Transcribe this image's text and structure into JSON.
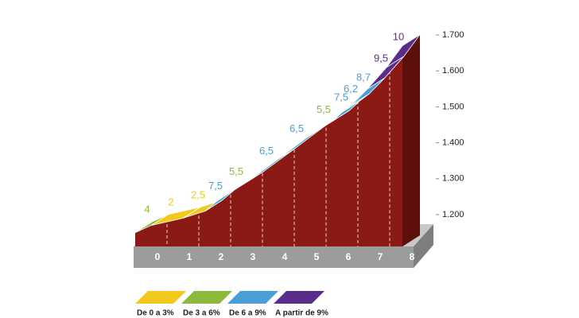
{
  "chart_data": {
    "type": "climb-profile",
    "distance": [
      0,
      0.5,
      1.5,
      2.2,
      2.6,
      3.5,
      4.5,
      5.4,
      6.2,
      6.5,
      6.8,
      7.3,
      7.9,
      8.4
    ],
    "altitude": [
      1150,
      1170,
      1190,
      1210,
      1240,
      1290,
      1355,
      1415,
      1460,
      1485,
      1505,
      1550,
      1610,
      1670
    ],
    "gradients": [
      4,
      2,
      2.5,
      7.5,
      5.5,
      6.5,
      6.5,
      5.5,
      7.5,
      6.2,
      8.7,
      9.5,
      10
    ],
    "gradient_labels": [
      "4",
      "2",
      "2,5",
      "7,5",
      "5,5",
      "6,5",
      "6,5",
      "5,5",
      "7,5",
      "6,2",
      "8,7",
      "9,5",
      "10"
    ],
    "colors": [
      "#8dba3c",
      "#f2c81c",
      "#f2c81c",
      "#4a9fd8",
      "#8dba3c",
      "#4a9fd8",
      "#4a9fd8",
      "#8dba3c",
      "#4a9fd8",
      "#4a9fd8",
      "#4a9fd8",
      "#5a2d8c",
      "#5a2d8c"
    ],
    "profile_color": "#8b1a14",
    "ylim": [
      1200,
      1700
    ],
    "yticks": [
      {
        "value": 1200,
        "label": "1.200"
      },
      {
        "value": 1300,
        "label": "1.300"
      },
      {
        "value": 1400,
        "label": "1.400"
      },
      {
        "value": 1500,
        "label": "1.500"
      },
      {
        "value": 1600,
        "label": "1.600"
      },
      {
        "value": 1700,
        "label": "1.700"
      }
    ],
    "xticks": [
      0,
      1,
      2,
      3,
      4,
      5,
      6,
      7,
      8
    ],
    "legend": [
      {
        "name": "De 0 a 3%",
        "color": "#f2c81c"
      },
      {
        "name": "De 3 a 6%",
        "color": "#8dba3c"
      },
      {
        "name": "De 6 a 9%",
        "color": "#4a9fd8"
      },
      {
        "name": "A partir de 9%",
        "color": "#5a2d8c"
      }
    ]
  }
}
